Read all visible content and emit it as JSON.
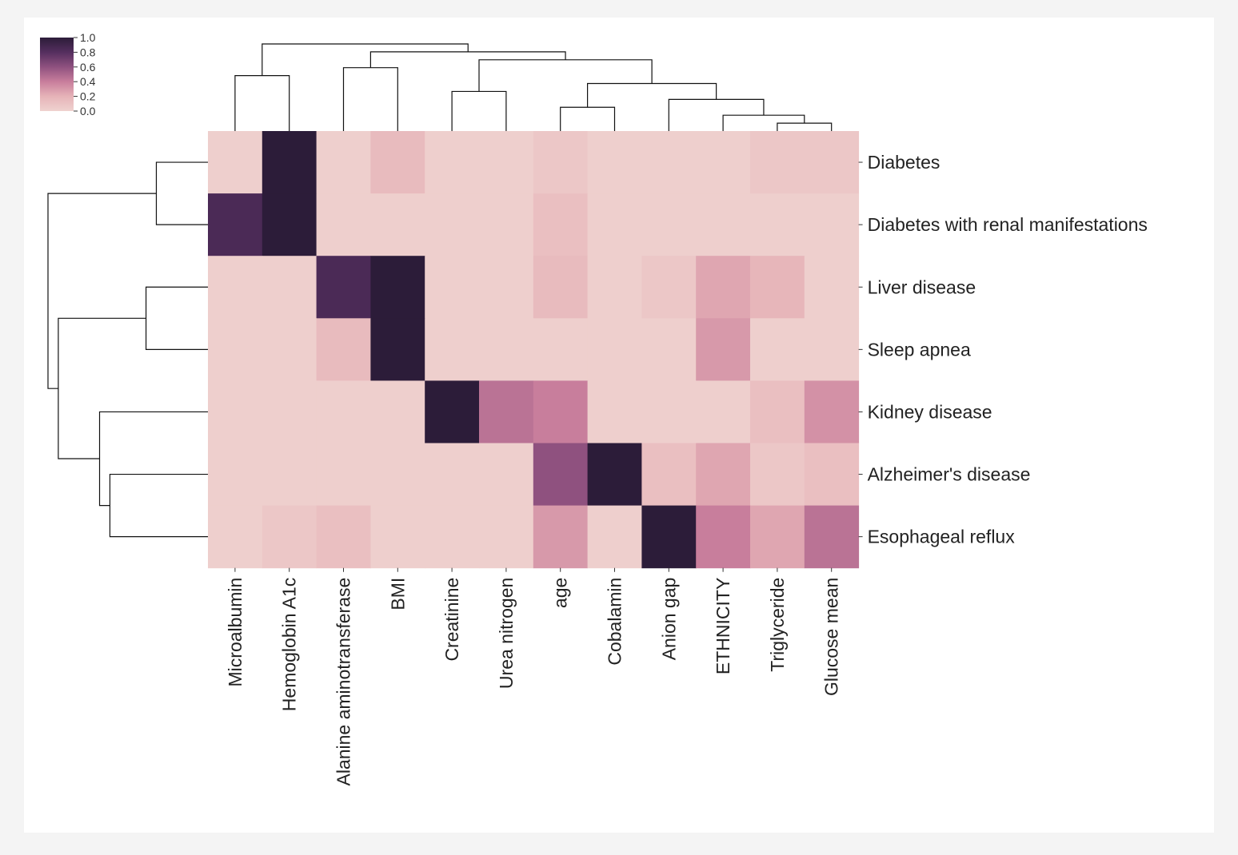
{
  "chart_data": {
    "type": "heatmap",
    "title": "",
    "xlabel": "",
    "ylabel": "",
    "columns": [
      "Microalbumin",
      "Hemoglobin A1c",
      "Alanine aminotransferase",
      "BMI",
      "Creatinine",
      "Urea nitrogen",
      "age",
      "Cobalamin",
      "Anion gap",
      "ETHNICITY",
      "Triglyceride",
      "Glucose mean"
    ],
    "rows": [
      "Diabetes",
      "Diabetes with renal manifestations",
      "Liver disease",
      "Sleep apnea",
      "Kidney disease",
      "Alzheimer's disease",
      "Esophageal reflux"
    ],
    "values": [
      [
        0.02,
        1.0,
        0.02,
        0.15,
        0.02,
        0.02,
        0.07,
        0.02,
        0.02,
        0.02,
        0.07,
        0.07
      ],
      [
        0.85,
        1.0,
        0.02,
        0.02,
        0.02,
        0.02,
        0.12,
        0.02,
        0.02,
        0.02,
        0.02,
        0.02
      ],
      [
        0.02,
        0.02,
        0.85,
        1.0,
        0.02,
        0.02,
        0.15,
        0.02,
        0.07,
        0.25,
        0.18,
        0.02
      ],
      [
        0.02,
        0.02,
        0.15,
        1.0,
        0.02,
        0.02,
        0.02,
        0.02,
        0.02,
        0.3,
        0.02,
        0.02
      ],
      [
        0.02,
        0.02,
        0.02,
        0.02,
        1.0,
        0.45,
        0.4,
        0.02,
        0.02,
        0.02,
        0.12,
        0.33
      ],
      [
        0.02,
        0.02,
        0.02,
        0.02,
        0.02,
        0.02,
        0.6,
        1.0,
        0.12,
        0.25,
        0.07,
        0.12
      ],
      [
        0.02,
        0.07,
        0.12,
        0.02,
        0.02,
        0.02,
        0.3,
        0.02,
        1.0,
        0.4,
        0.25,
        0.45
      ]
    ],
    "colorbar": {
      "min": 0.0,
      "max": 1.0,
      "ticks": [
        "1.0",
        "0.8",
        "0.6",
        "0.4",
        "0.2",
        "0.0"
      ],
      "colors": [
        "#efd2cf",
        "#e6b3b8",
        "#c87e9c",
        "#8f517f",
        "#552f5f",
        "#2c1c39"
      ]
    },
    "col_dendrogram": {
      "merges": [
        {
          "left": [
            10,
            0
          ],
          "right": [
            11,
            0
          ],
          "height": 1
        },
        {
          "left": [
            9,
            0
          ],
          "right": [
            10.5,
            1
          ],
          "height": 2
        },
        {
          "left": [
            6,
            0
          ],
          "right": [
            7,
            0
          ],
          "height": 3
        },
        {
          "left": [
            8,
            0
          ],
          "right": [
            9.75,
            2
          ],
          "height": 4
        },
        {
          "left": [
            4,
            0
          ],
          "right": [
            5,
            0
          ],
          "height": 5
        },
        {
          "left": [
            6.5,
            3
          ],
          "right": [
            8.875,
            4
          ],
          "height": 6
        },
        {
          "left": [
            0,
            0
          ],
          "right": [
            1,
            0
          ],
          "height": 7
        },
        {
          "left": [
            2,
            0
          ],
          "right": [
            3,
            0
          ],
          "height": 8
        },
        {
          "left": [
            4.5,
            5
          ],
          "right": [
            7.6875,
            6
          ],
          "height": 9
        },
        {
          "left": [
            2.5,
            8
          ],
          "right": [
            6.09375,
            9
          ],
          "height": 10
        },
        {
          "left": [
            0.5,
            7
          ],
          "right": [
            4.296875,
            10
          ],
          "height": 11
        }
      ]
    },
    "row_dendrogram": {
      "merges": [
        {
          "top": [
            0,
            0
          ],
          "bottom": [
            1,
            0
          ],
          "height": 1
        },
        {
          "top": [
            2,
            0
          ],
          "bottom": [
            3,
            0
          ],
          "height": 1.2
        },
        {
          "top": [
            5,
            0
          ],
          "bottom": [
            6,
            0
          ],
          "height": 1.9
        },
        {
          "top": [
            4,
            0
          ],
          "bottom": [
            5.5,
            1.9
          ],
          "height": 2.1
        },
        {
          "top": [
            2.5,
            1.2
          ],
          "bottom": [
            4.75,
            2.1
          ],
          "height": 2.9
        },
        {
          "top": [
            0.5,
            1
          ],
          "bottom": [
            3.625,
            2.9
          ],
          "height": 3.1
        }
      ]
    }
  }
}
